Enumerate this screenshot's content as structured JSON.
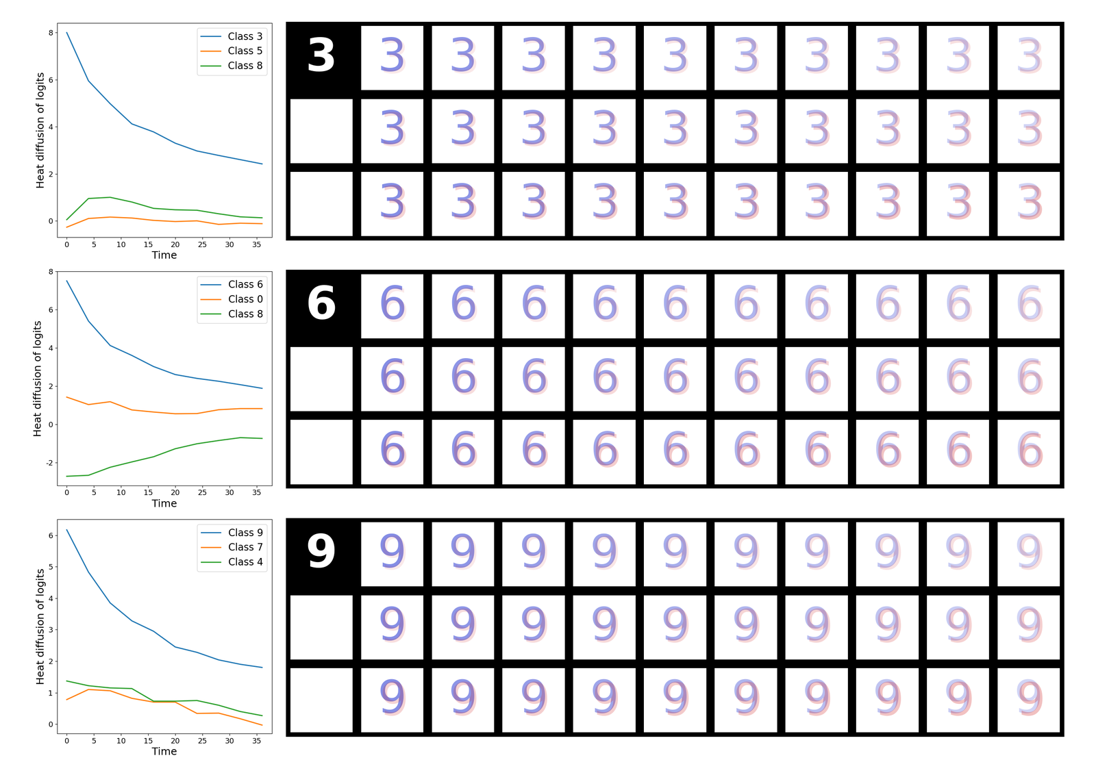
{
  "chart_data": [
    {
      "type": "line",
      "x_label": "Time",
      "y_label": "Heat diffusion of logits",
      "x": [
        0,
        4,
        8,
        12,
        16,
        20,
        24,
        28,
        32,
        36
      ],
      "xlim": [
        -1.8,
        37.8
      ],
      "xticks": [
        0,
        5,
        10,
        15,
        20,
        25,
        30,
        35
      ],
      "ylim": [
        -0.7,
        8.4
      ],
      "yticks": [
        0,
        2,
        4,
        6,
        8
      ],
      "legend": "upper right",
      "series": [
        {
          "name": "Class 3",
          "color": "#1f77b4",
          "values": [
            8.0,
            5.95,
            4.98,
            4.12,
            3.78,
            3.3,
            2.97,
            2.78,
            2.6,
            2.42
          ]
        },
        {
          "name": "Class 5",
          "color": "#ff7f0e",
          "values": [
            -0.27,
            0.1,
            0.16,
            0.12,
            0.02,
            -0.03,
            0.0,
            -0.15,
            -0.1,
            -0.12
          ]
        },
        {
          "name": "Class 8",
          "color": "#2ca02c",
          "values": [
            0.05,
            0.95,
            1.0,
            0.8,
            0.53,
            0.47,
            0.45,
            0.3,
            0.17,
            0.13
          ]
        }
      ]
    },
    {
      "type": "line",
      "x_label": "Time",
      "y_label": "Heat diffusion of logits",
      "x": [
        0,
        4,
        8,
        12,
        16,
        20,
        24,
        28,
        32,
        36
      ],
      "xlim": [
        -1.8,
        37.8
      ],
      "xticks": [
        0,
        5,
        10,
        15,
        20,
        25,
        30,
        35
      ],
      "ylim": [
        -3.2,
        8.0
      ],
      "yticks": [
        -2,
        0,
        2,
        4,
        6,
        8
      ],
      "legend": "upper right",
      "series": [
        {
          "name": "Class 6",
          "color": "#1f77b4",
          "values": [
            7.5,
            5.4,
            4.12,
            3.6,
            3.02,
            2.6,
            2.4,
            2.25,
            2.07,
            1.88
          ]
        },
        {
          "name": "Class 0",
          "color": "#ff7f0e",
          "values": [
            1.42,
            1.03,
            1.18,
            0.75,
            0.64,
            0.55,
            0.56,
            0.76,
            0.82,
            0.82
          ]
        },
        {
          "name": "Class 8",
          "color": "#2ca02c",
          "values": [
            -2.72,
            -2.67,
            -2.25,
            -1.97,
            -1.7,
            -1.28,
            -1.02,
            -0.85,
            -0.7,
            -0.74
          ]
        }
      ]
    },
    {
      "type": "line",
      "x_label": "Time",
      "y_label": "Heat diffusion of logits",
      "x": [
        0,
        4,
        8,
        12,
        16,
        20,
        24,
        28,
        32,
        36
      ],
      "xlim": [
        -1.8,
        37.8
      ],
      "xticks": [
        0,
        5,
        10,
        15,
        20,
        25,
        30,
        35
      ],
      "ylim": [
        -0.3,
        6.5
      ],
      "yticks": [
        0,
        1,
        2,
        3,
        4,
        5,
        6
      ],
      "legend": "upper right",
      "series": [
        {
          "name": "Class 9",
          "color": "#1f77b4",
          "values": [
            6.17,
            4.83,
            3.85,
            3.28,
            2.95,
            2.45,
            2.28,
            2.04,
            1.9,
            1.8
          ]
        },
        {
          "name": "Class 7",
          "color": "#ff7f0e",
          "values": [
            0.78,
            1.1,
            1.06,
            0.82,
            0.7,
            0.7,
            0.34,
            0.35,
            0.17,
            -0.03
          ]
        },
        {
          "name": "Class 4",
          "color": "#2ca02c",
          "values": [
            1.37,
            1.22,
            1.15,
            1.13,
            0.73,
            0.73,
            0.75,
            0.6,
            0.4,
            0.27
          ]
        }
      ]
    }
  ],
  "image_grids": [
    {
      "digit": "3"
    },
    {
      "digit": "6"
    },
    {
      "digit": "9"
    }
  ]
}
